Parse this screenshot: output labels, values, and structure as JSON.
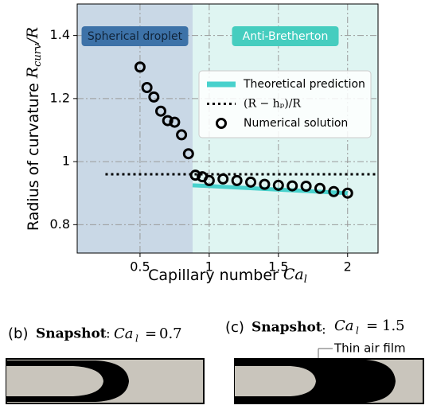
{
  "chart_data": {
    "type": "scatter",
    "x_label": {
      "text": "Capillary number",
      "symbol": "Ca",
      "subscript": "l"
    },
    "y_label": {
      "text": "Radius of curvature",
      "symbol": "R",
      "subscript": "curv",
      "suffix": "/R"
    },
    "xlim": [
      0.046,
      2.22
    ],
    "ylim": [
      0.71,
      1.5
    ],
    "xticks": [
      0.5,
      1.0,
      1.5,
      2.0
    ],
    "yticks": [
      0.8,
      1.0,
      1.2,
      1.4
    ],
    "grid": true,
    "regions": [
      {
        "label": "Spherical droplet",
        "xlim": [
          0.046,
          0.88
        ],
        "color": "#c9d8e6",
        "label_color": "#3d72a8"
      },
      {
        "label": "Anti-Bretherton",
        "xlim": [
          0.88,
          2.22
        ],
        "color": "#dff5f2",
        "label_color": "#45cdbf"
      }
    ],
    "series": [
      {
        "name": "Theoretical prediction",
        "style": "line",
        "color": "#48d1cc",
        "x": [
          0.88,
          2.0
        ],
        "values": [
          0.925,
          0.9
        ]
      },
      {
        "name": "(R − hₚ)/R",
        "style": "dotted",
        "color": "#000000",
        "x": [
          0.25,
          2.22
        ],
        "values": [
          0.96,
          0.96
        ]
      },
      {
        "name": "Numerical solution",
        "style": "marker",
        "color": "#000000",
        "x": [
          0.5,
          0.55,
          0.6,
          0.65,
          0.7,
          0.75,
          0.8,
          0.85,
          0.9,
          0.95,
          1.0,
          1.1,
          1.2,
          1.3,
          1.4,
          1.5,
          1.6,
          1.7,
          1.8,
          1.9,
          2.0
        ],
        "values": [
          1.3,
          1.235,
          1.205,
          1.16,
          1.13,
          1.125,
          1.085,
          1.025,
          0.957,
          0.952,
          0.94,
          0.945,
          0.94,
          0.935,
          0.928,
          0.925,
          0.923,
          0.922,
          0.915,
          0.905,
          0.9
        ]
      }
    ]
  },
  "snapshots": [
    {
      "label": "(b)",
      "title": "Snapshot",
      "symbol": "Ca",
      "subscript": "l",
      "value": 0.7
    },
    {
      "label": "(c)",
      "title": "Snapshot",
      "symbol": "Ca",
      "subscript": "l",
      "value": 1.5,
      "annotation": "Thin air film"
    }
  ]
}
